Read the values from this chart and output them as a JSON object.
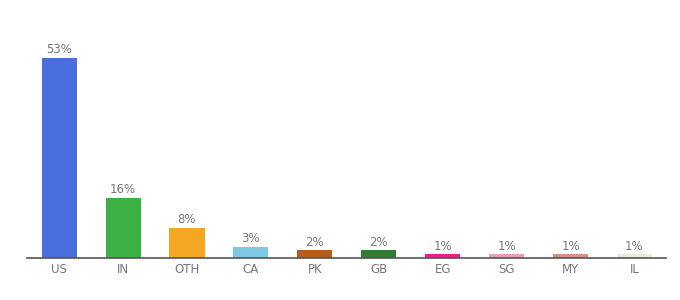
{
  "categories": [
    "US",
    "IN",
    "OTH",
    "CA",
    "PK",
    "GB",
    "EG",
    "SG",
    "MY",
    "IL"
  ],
  "values": [
    53,
    16,
    8,
    3,
    2,
    2,
    1,
    1,
    1,
    1
  ],
  "labels": [
    "53%",
    "16%",
    "8%",
    "3%",
    "2%",
    "2%",
    "1%",
    "1%",
    "1%",
    "1%"
  ],
  "bar_colors": [
    "#4a6fdc",
    "#3cb044",
    "#f5a623",
    "#7ec8e3",
    "#b85c1a",
    "#2e7d32",
    "#e91e8c",
    "#e8a0b0",
    "#d89080",
    "#f0ead6"
  ],
  "background_color": "#ffffff",
  "label_fontsize": 8.5,
  "tick_fontsize": 8.5,
  "label_color": "#777777",
  "tick_color": "#777777",
  "ylim": [
    0,
    62
  ],
  "bar_width": 0.55
}
